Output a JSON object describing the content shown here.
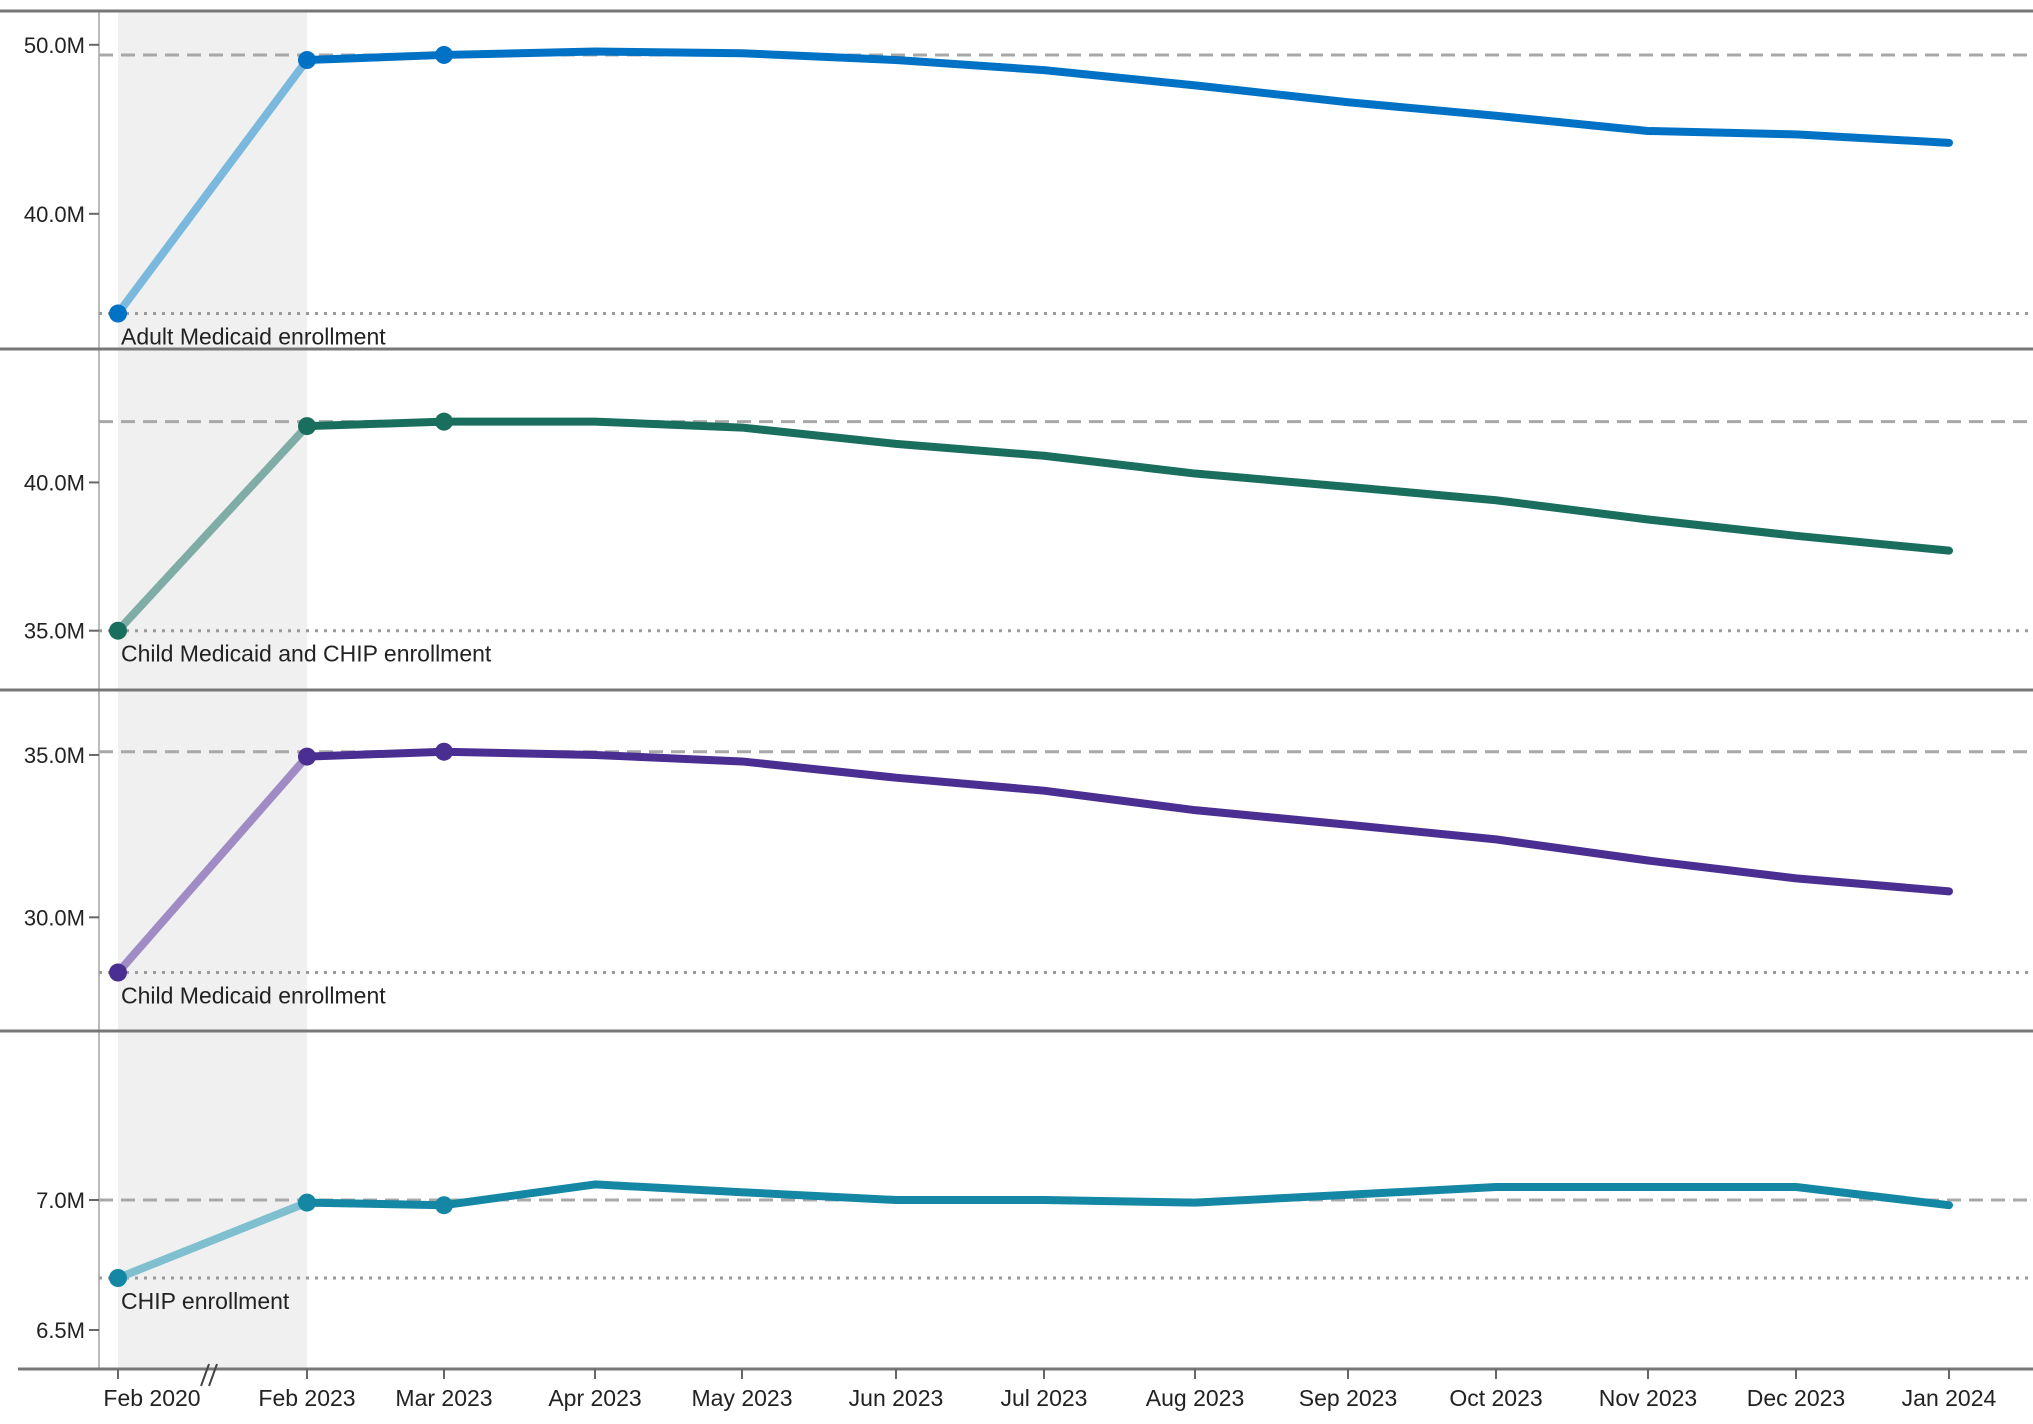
{
  "chart_data": {
    "type": "line",
    "x": [
      "Feb 2020",
      "Feb 2023",
      "Mar 2023",
      "Apr 2023",
      "May 2023",
      "Jun 2023",
      "Jul 2023",
      "Aug 2023",
      "Sep 2023",
      "Oct 2023",
      "Nov 2023",
      "Dec 2023",
      "Jan 2024"
    ],
    "x_break_between": [
      "Feb 2020",
      "Feb 2023"
    ],
    "grid": false,
    "panels": [
      {
        "label": "Adult Medicaid enrollment",
        "color": "#0072c6",
        "light_color": "#7ab8de",
        "ylim": [
          32.0,
          52.0
        ],
        "yticks": [
          {
            "value": 40.0,
            "label": "40.0M"
          },
          {
            "value": 50.0,
            "label": "50.0M"
          }
        ],
        "values": [
          34.1,
          49.1,
          49.4,
          49.6,
          49.5,
          49.1,
          48.5,
          47.6,
          46.6,
          45.8,
          44.9,
          44.7,
          44.2
        ],
        "dashed_ref": 49.4,
        "dotted_ref": 34.1
      },
      {
        "label": "Child Medicaid and CHIP enrollment",
        "color": "#1a6e5e",
        "light_color": "#7fada5",
        "ylim": [
          33.0,
          44.5
        ],
        "yticks": [
          {
            "value": 35.0,
            "label": "35.0M"
          },
          {
            "value": 40.0,
            "label": "40.0M"
          }
        ],
        "values": [
          35.0,
          41.9,
          42.05,
          42.05,
          41.85,
          41.3,
          40.9,
          40.3,
          39.85,
          39.4,
          38.75,
          38.2,
          37.7
        ],
        "dashed_ref": 42.05,
        "dotted_ref": 35.0
      },
      {
        "label": "Child Medicaid enrollment",
        "color": "#4b2e91",
        "light_color": "#9f8cc4",
        "ylim": [
          26.5,
          37.0
        ],
        "yticks": [
          {
            "value": 30.0,
            "label": "30.0M"
          },
          {
            "value": 35.0,
            "label": "35.0M"
          }
        ],
        "values": [
          28.3,
          34.95,
          35.1,
          35.0,
          34.8,
          34.3,
          33.9,
          33.3,
          32.85,
          32.4,
          31.75,
          31.2,
          30.8
        ],
        "dashed_ref": 35.1,
        "dotted_ref": 28.3
      },
      {
        "label": "CHIP enrollment",
        "color": "#1387a3",
        "light_color": "#7fbfcf",
        "ylim": [
          6.35,
          7.65
        ],
        "yticks": [
          {
            "value": 6.5,
            "label": "6.5M"
          },
          {
            "value": 7.0,
            "label": "7.0M"
          }
        ],
        "values": [
          6.7,
          6.99,
          6.98,
          7.06,
          7.03,
          7.0,
          7.0,
          6.99,
          7.02,
          7.05,
          7.05,
          7.05,
          6.98
        ],
        "dashed_ref": 7.0,
        "dotted_ref": 6.7
      }
    ]
  }
}
